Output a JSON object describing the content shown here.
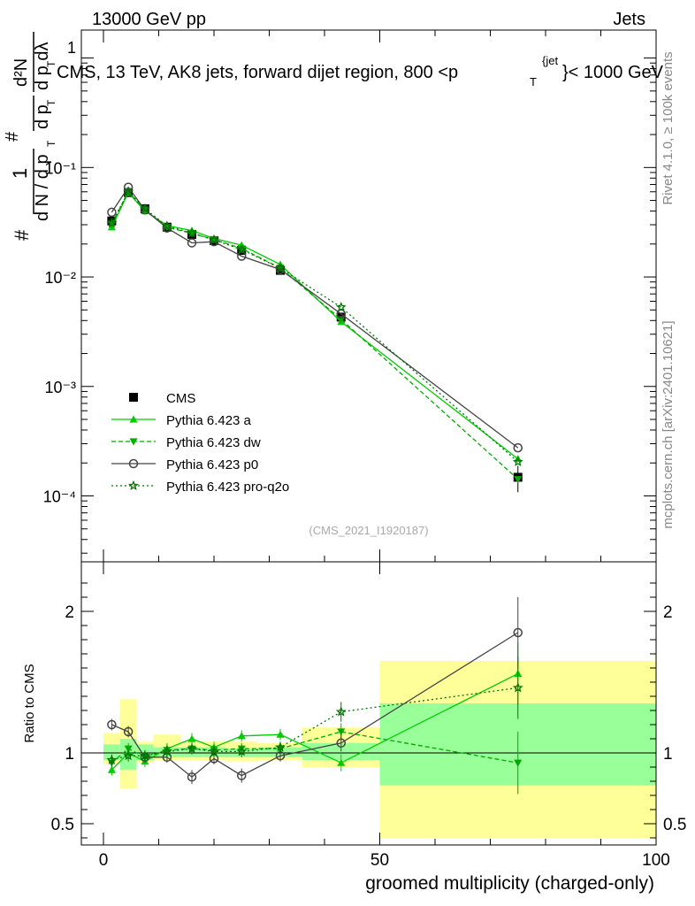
{
  "header": {
    "energy_label": "13000 GeV pp",
    "category_label": "Jets"
  },
  "side_labels": {
    "rivet": "Rivet 4.1.0, ≥ 100k events",
    "mcplots": "mcplots.cern.ch [arXiv:2401.10621]"
  },
  "ylabel_main": {
    "hash_top": "#",
    "one": "1",
    "dN": "d N / d p",
    "dN_sub": "T",
    "hash_mid": "#",
    "dpT": "d p",
    "dpT_sub": "T",
    "d2N": "d²N",
    "dpTdl": "d p  dλ",
    "dpTdl_sub": "T"
  },
  "chart_data": {
    "type": "line",
    "title": "CMS, 13 TeV, AK8 jets, forward dijet region, 800 <p",
    "title_sub": "T",
    "title_sup": "{jet",
    "title_end": "}< 1000 GeV",
    "watermark": "(CMS_2021_I1920187)",
    "xlabel": "groomed multiplicity (charged-only)",
    "ylabel_ratio": "Ratio to CMS",
    "xlim": [
      -4,
      100
    ],
    "ylim_main": [
      2.5e-05,
      1.8
    ],
    "ylim_ratio": [
      0.35,
      2.35
    ],
    "x_ticks": [
      "0",
      "50",
      "100"
    ],
    "x_tick_values": [
      0,
      50,
      100
    ],
    "y_ticks_main": [
      "10⁻¹",
      "10⁻²",
      "10⁻³",
      "10⁻⁴"
    ],
    "y_tick_values_main": [
      0.1,
      0.01,
      0.001,
      0.0001
    ],
    "y_ticks_ratio": [
      "2",
      "1",
      "0.5"
    ],
    "y_tick_values_ratio": [
      2,
      1,
      0.5
    ],
    "ylabel_top_tick": "1",
    "bins": [
      [
        0,
        3
      ],
      [
        3,
        6
      ],
      [
        6,
        9
      ],
      [
        9,
        14
      ],
      [
        14,
        18
      ],
      [
        18,
        22
      ],
      [
        22,
        28
      ],
      [
        28,
        36
      ],
      [
        36,
        50
      ],
      [
        50,
        100
      ]
    ],
    "centers": [
      1.5,
      4.5,
      7.5,
      11.5,
      16,
      20,
      25,
      32,
      43,
      75
    ],
    "ratio_band_stat": [
      [
        0.95,
        1.06
      ],
      [
        0.88,
        1.1
      ],
      [
        0.95,
        1.06
      ],
      [
        0.97,
        1.04
      ],
      [
        0.97,
        1.04
      ],
      [
        0.97,
        1.04
      ],
      [
        0.97,
        1.03
      ],
      [
        0.97,
        1.04
      ],
      [
        0.95,
        1.07
      ],
      [
        0.77,
        1.35
      ]
    ],
    "ratio_band_total": [
      [
        0.92,
        1.14
      ],
      [
        0.75,
        1.38
      ],
      [
        0.93,
        1.08
      ],
      [
        0.95,
        1.13
      ],
      [
        0.95,
        1.08
      ],
      [
        0.95,
        1.08
      ],
      [
        0.94,
        1.08
      ],
      [
        0.95,
        1.07
      ],
      [
        0.9,
        1.18
      ],
      [
        0.4,
        1.65
      ]
    ],
    "legend": {
      "entries": [
        "CMS",
        "Pythia 6.423 a",
        "Pythia 6.423 dw",
        "Pythia 6.423 p0",
        "Pythia 6.423 pro-q2o"
      ]
    },
    "series": [
      {
        "name": "CMS",
        "color": "#000000",
        "marker": "square",
        "dash": "",
        "values": [
          0.0325,
          0.059,
          0.042,
          0.0285,
          0.0245,
          0.0215,
          0.0175,
          0.0115,
          0.0043,
          0.000148
        ],
        "errors": [
          0.002,
          0.002,
          0.0015,
          0.001,
          0.001,
          0.0008,
          0.0006,
          0.0004,
          0.0002,
          4e-05
        ],
        "ratio": [
          1,
          1,
          1,
          1,
          1,
          1,
          1,
          1,
          1,
          1
        ]
      },
      {
        "name": "Pythia 6.423 a",
        "color": "#00cc00",
        "marker": "triangle-up",
        "dash": "",
        "values": [
          0.0285,
          0.059,
          0.04,
          0.0295,
          0.0265,
          0.0225,
          0.0195,
          0.013,
          0.0039,
          0.000218
        ],
        "ratio": [
          0.88,
          1.0,
          0.94,
          1.03,
          1.1,
          1.04,
          1.12,
          1.13,
          0.93,
          1.56
        ],
        "ratio_err": [
          0.04,
          0.04,
          0.04,
          0.04,
          0.04,
          0.04,
          0.04,
          0.04,
          0.06,
          0.22
        ]
      },
      {
        "name": "Pythia 6.423 dw",
        "color": "#00aa00",
        "marker": "triangle-down",
        "dash": "5,3",
        "values": [
          0.0305,
          0.06,
          0.041,
          0.0285,
          0.025,
          0.022,
          0.0182,
          0.0121,
          0.0041,
          0.000142
        ],
        "ratio": [
          0.93,
          1.03,
          0.97,
          1.02,
          1.03,
          1.02,
          1.03,
          1.03,
          1.15,
          0.93
        ],
        "ratio_err": [
          0.04,
          0.04,
          0.04,
          0.04,
          0.04,
          0.04,
          0.04,
          0.04,
          0.06,
          0.22
        ]
      },
      {
        "name": "Pythia 6.423 p0",
        "color": "#444444",
        "marker": "circle-open",
        "dash": "",
        "values": [
          0.039,
          0.066,
          0.041,
          0.028,
          0.0205,
          0.021,
          0.0155,
          0.0117,
          0.0046,
          0.000275
        ],
        "ratio": [
          1.2,
          1.15,
          0.97,
          0.97,
          0.83,
          0.96,
          0.84,
          0.98,
          1.07,
          1.85
        ],
        "ratio_err": [
          0.04,
          0.04,
          0.04,
          0.04,
          0.05,
          0.04,
          0.05,
          0.04,
          0.06,
          0.25
        ]
      },
      {
        "name": "Pythia 6.423 pro-q2o",
        "color": "#007700",
        "marker": "star",
        "dash": "2,3",
        "values": [
          0.031,
          0.06,
          0.042,
          0.0292,
          0.0252,
          0.0218,
          0.0178,
          0.012,
          0.0053,
          0.000205
        ],
        "ratio": [
          0.95,
          0.98,
          0.98,
          1.01,
          1.03,
          1.01,
          1.01,
          1.04,
          1.29,
          1.46
        ],
        "ratio_err": [
          0.04,
          0.04,
          0.04,
          0.04,
          0.04,
          0.04,
          0.04,
          0.04,
          0.07,
          0.22
        ]
      }
    ]
  }
}
